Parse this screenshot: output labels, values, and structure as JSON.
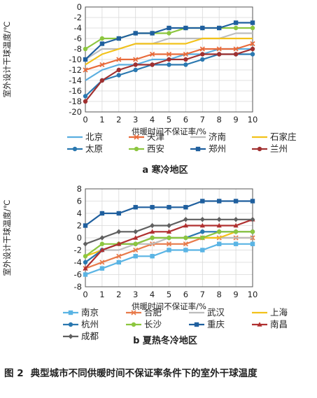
{
  "figure": {
    "number": "图 2",
    "caption": "典型城市不同供暖时间不保证率条件下的室外干球温度"
  },
  "chart_data": [
    {
      "type": "line",
      "panel": "a",
      "subtitle": "寒冷地区",
      "xlabel": "供暖时间不保证率/%",
      "ylabel": "室外设计干球温度/℃",
      "xlim": [
        0,
        10
      ],
      "ylim": [
        -20,
        0
      ],
      "xticks": [
        0,
        1,
        2,
        3,
        4,
        5,
        6,
        7,
        8,
        9,
        10
      ],
      "yticks": [
        0,
        -2,
        -4,
        -6,
        -8,
        -10,
        -12,
        -14,
        -16,
        -18,
        -20
      ],
      "grid": true,
      "legend_position": "bottom",
      "x": [
        0,
        1,
        2,
        3,
        4,
        5,
        6,
        7,
        8,
        9,
        10
      ],
      "series": [
        {
          "name": "北京",
          "color": "#5aaee0",
          "marker": "none",
          "values": [
            -14,
            -12,
            -11,
            -11,
            -10,
            -10,
            -9,
            -9,
            -8,
            -8,
            -8
          ]
        },
        {
          "name": "天津",
          "color": "#e86a3a",
          "marker": "x",
          "values": [
            -12,
            -11,
            -10,
            -10,
            -9,
            -9,
            -9,
            -8,
            -8,
            -8,
            -7
          ]
        },
        {
          "name": "济南",
          "color": "#bdbdbd",
          "marker": "none",
          "values": [
            -10,
            -8,
            -8,
            -7,
            -7,
            -6,
            -6,
            -6,
            -6,
            -5,
            -5
          ]
        },
        {
          "name": "石家庄",
          "color": "#f2c21a",
          "marker": "none",
          "values": [
            -11,
            -9,
            -8,
            -7,
            -7,
            -7,
            -7,
            -6,
            -6,
            -6,
            -6
          ]
        },
        {
          "name": "太原",
          "color": "#2a78b0",
          "marker": "circle",
          "values": [
            -17,
            -14,
            -13,
            -12,
            -11,
            -11,
            -11,
            -10,
            -9,
            -9,
            -9
          ]
        },
        {
          "name": "西安",
          "color": "#8cc63f",
          "marker": "circle",
          "values": [
            -8,
            -6,
            -6,
            -5,
            -5,
            -5,
            -4,
            -4,
            -4,
            -4,
            -4
          ]
        },
        {
          "name": "郑州",
          "color": "#1f5f9e",
          "marker": "square",
          "values": [
            -10,
            -7,
            -6,
            -5,
            -5,
            -4,
            -4,
            -4,
            -4,
            -3,
            -3
          ]
        },
        {
          "name": "兰州",
          "color": "#a03030",
          "marker": "circle",
          "values": [
            -18,
            -14,
            -12,
            -11,
            -11,
            -10,
            -10,
            -9,
            -9,
            -9,
            -8
          ]
        }
      ]
    },
    {
      "type": "line",
      "panel": "b",
      "subtitle": "夏热冬冷地区",
      "xlabel": "供暖时间不保证率/%",
      "ylabel": "室外设计干球温度/℃",
      "xlim": [
        0,
        10
      ],
      "ylim": [
        -8,
        8
      ],
      "xticks": [
        0,
        1,
        2,
        3,
        4,
        5,
        6,
        7,
        8,
        9,
        10
      ],
      "yticks": [
        8,
        6,
        4,
        2,
        0,
        -2,
        -4,
        -6,
        -8
      ],
      "grid": true,
      "legend_position": "bottom",
      "x": [
        0,
        1,
        2,
        3,
        4,
        5,
        6,
        7,
        8,
        9,
        10
      ],
      "series": [
        {
          "name": "南京",
          "color": "#5ab4e4",
          "marker": "square",
          "values": [
            -6,
            -5,
            -4,
            -3,
            -3,
            -2,
            -2,
            -2,
            -1,
            -1,
            -1
          ]
        },
        {
          "name": "合肥",
          "color": "#e87a4a",
          "marker": "x",
          "values": [
            -5,
            -4,
            -3,
            -2,
            -1,
            -1,
            -1,
            0,
            0,
            0,
            0
          ]
        },
        {
          "name": "武汉",
          "color": "#bdbdbd",
          "marker": "none",
          "values": [
            -4,
            -2,
            -2,
            -1,
            -1,
            0,
            0,
            0,
            0,
            0,
            0
          ]
        },
        {
          "name": "上海",
          "color": "#f2c21a",
          "marker": "none",
          "values": [
            -3,
            -2,
            -1,
            -1,
            0,
            0,
            0,
            0,
            0,
            1,
            1
          ]
        },
        {
          "name": "杭州",
          "color": "#2a78b0",
          "marker": "circle",
          "values": [
            -4,
            -2,
            -1,
            -1,
            0,
            0,
            0,
            1,
            1,
            1,
            1
          ]
        },
        {
          "name": "长沙",
          "color": "#8cc63f",
          "marker": "circle",
          "values": [
            -3,
            -1,
            -1,
            -1,
            0,
            0,
            0,
            0,
            1,
            1,
            1
          ]
        },
        {
          "name": "重庆",
          "color": "#1f5f9e",
          "marker": "square",
          "values": [
            2,
            4,
            4,
            5,
            5,
            5,
            5,
            6,
            6,
            6,
            6
          ]
        },
        {
          "name": "南昌",
          "color": "#b03030",
          "marker": "triangle",
          "values": [
            -5,
            -2,
            -1,
            0,
            1,
            1,
            2,
            2,
            2,
            2,
            3
          ]
        },
        {
          "name": "成都",
          "color": "#606060",
          "marker": "diamond",
          "values": [
            -1,
            0,
            1,
            1,
            2,
            2,
            3,
            3,
            3,
            3,
            3
          ]
        }
      ]
    }
  ]
}
